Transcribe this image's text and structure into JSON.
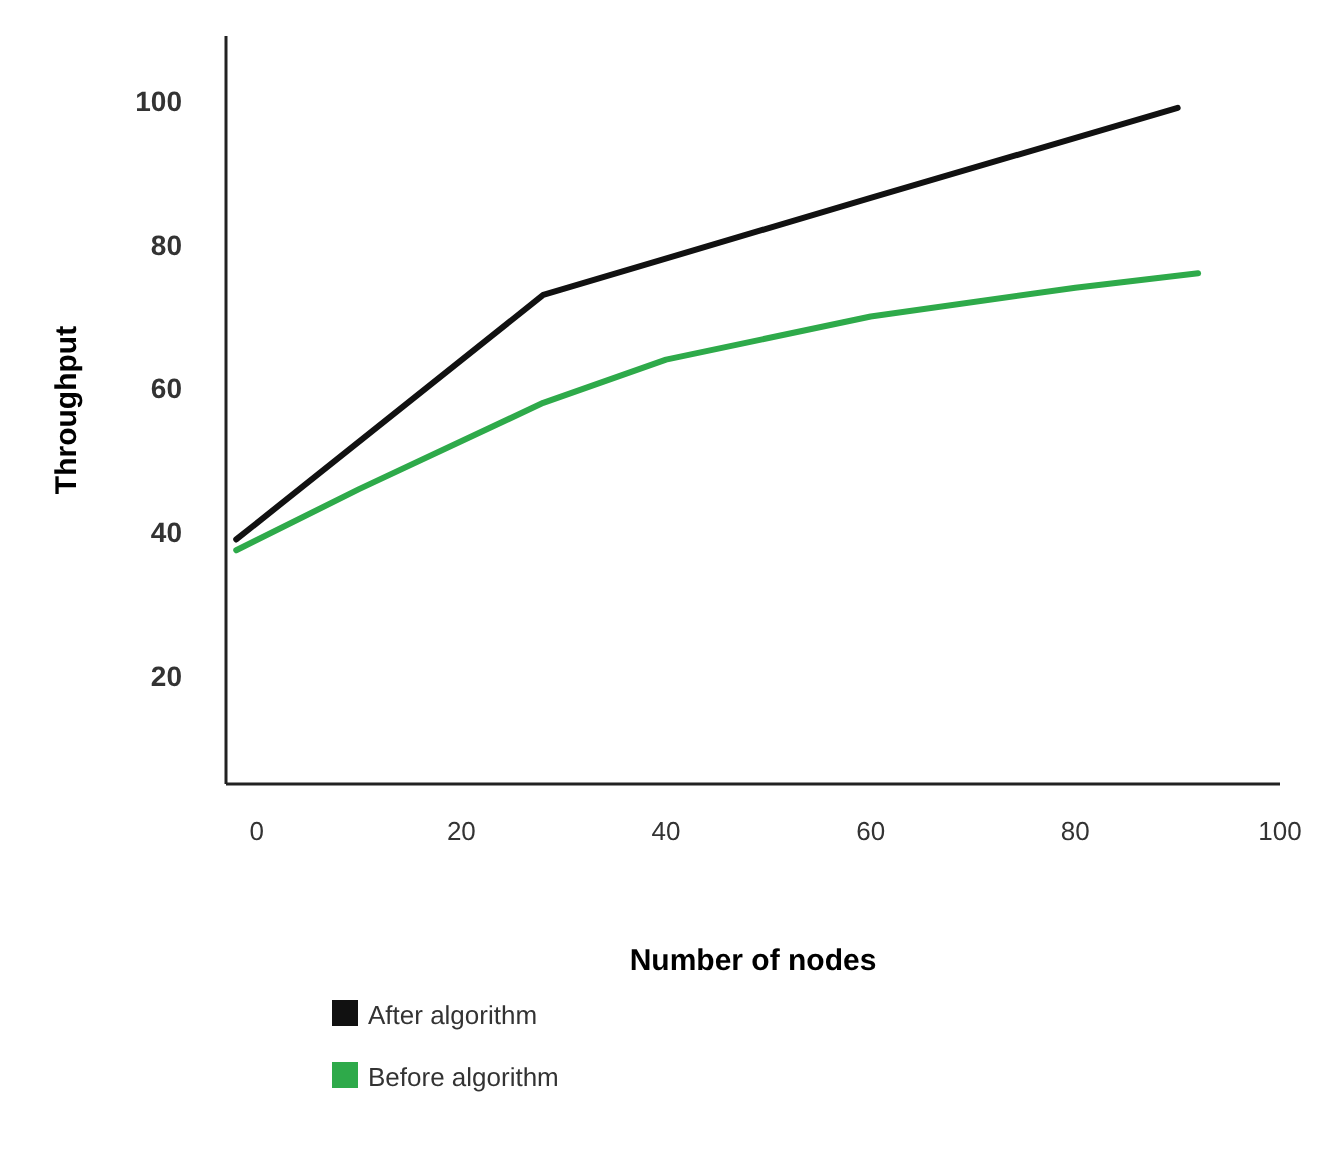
{
  "chart_data": {
    "type": "line",
    "xlabel": "Number of nodes",
    "ylabel": "Throughput",
    "xlim": [
      -3,
      100
    ],
    "ylim": [
      5,
      109
    ],
    "xticks": [
      0,
      20,
      40,
      60,
      80,
      100
    ],
    "yticks": [
      20,
      40,
      60,
      80,
      100
    ],
    "grid": false,
    "legend": "bottom",
    "marker": "none",
    "line_style": "solid",
    "series": [
      {
        "name": "After algorithm",
        "color": "#111111",
        "x": [
          -2,
          28,
          60,
          90
        ],
        "values": [
          39,
          73,
          86.5,
          99
        ]
      },
      {
        "name": "Before algorithm",
        "color": "#2eaa4a",
        "x": [
          -2,
          10,
          28,
          40,
          60,
          80,
          92
        ],
        "values": [
          37.5,
          46,
          58,
          64,
          70,
          74,
          76
        ]
      }
    ]
  }
}
